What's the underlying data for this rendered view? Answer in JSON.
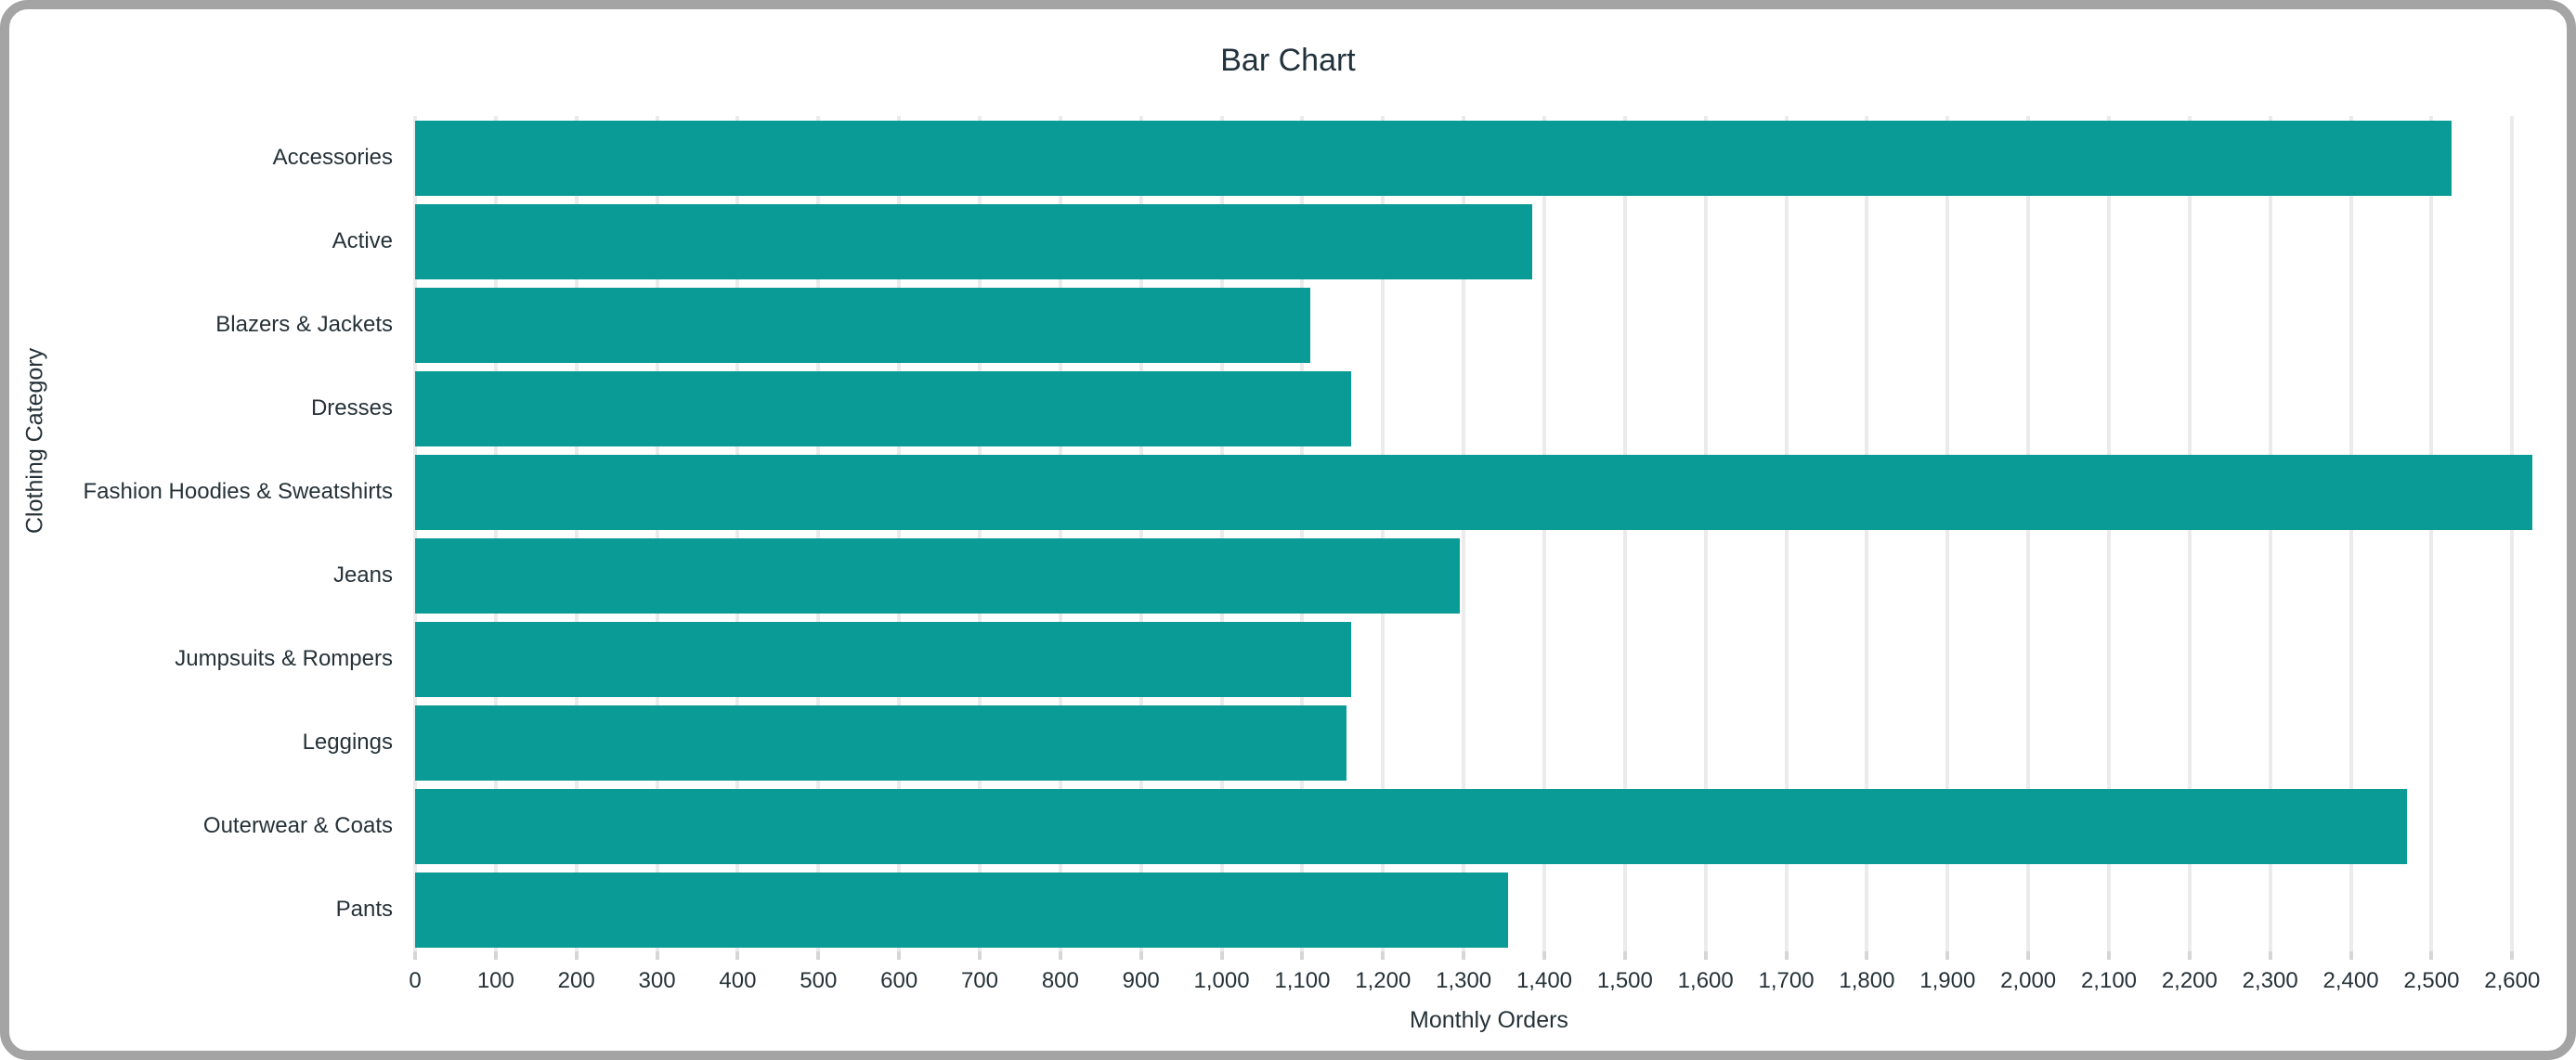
{
  "chart_data": {
    "type": "bar",
    "orientation": "horizontal",
    "title": "Bar Chart",
    "xlabel": "Monthly Orders",
    "ylabel": "Clothing Category",
    "categories": [
      "Accessories",
      "Active",
      "Blazers & Jackets",
      "Dresses",
      "Fashion Hoodies & Sweatshirts",
      "Jeans",
      "Jumpsuits & Rompers",
      "Leggings",
      "Outerwear & Coats",
      "Pants"
    ],
    "values": [
      2525,
      1385,
      1110,
      1160,
      2625,
      1295,
      1160,
      1155,
      2470,
      1355
    ],
    "xlim": [
      0,
      2663
    ],
    "x_ticks": [
      0,
      100,
      200,
      300,
      400,
      500,
      600,
      700,
      800,
      900,
      1000,
      1100,
      1200,
      1300,
      1400,
      1500,
      1600,
      1700,
      1800,
      1900,
      2000,
      2100,
      2200,
      2300,
      2400,
      2500,
      2600
    ],
    "x_tick_labels": [
      "0",
      "100",
      "200",
      "300",
      "400",
      "500",
      "600",
      "700",
      "800",
      "900",
      "1,000",
      "1,100",
      "1,200",
      "1,300",
      "1,400",
      "1,500",
      "1,600",
      "1,700",
      "1,800",
      "1,900",
      "2,000",
      "2,100",
      "2,200",
      "2,300",
      "2,400",
      "2,500",
      "2,600"
    ],
    "grid": true,
    "legend": "none",
    "bar_color": "#0a9b96",
    "text_color": "#263238",
    "grid_color": "#ebebeb",
    "frame_color": "#a4a4a4"
  }
}
